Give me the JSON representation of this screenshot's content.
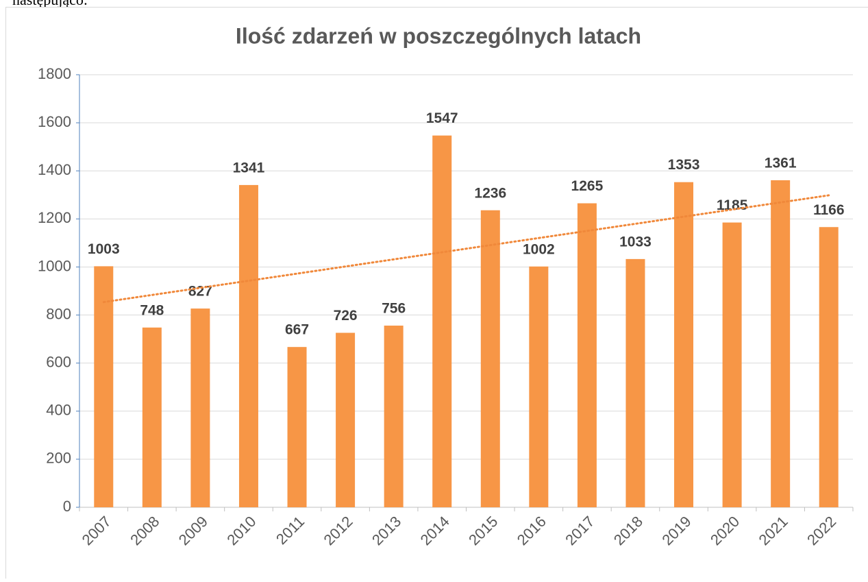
{
  "page_text": "następująco:",
  "chart_data": {
    "type": "bar",
    "title": "Ilość zdarzeń w poszczególnych latach",
    "categories": [
      "2007",
      "2008",
      "2009",
      "2010",
      "2011",
      "2012",
      "2013",
      "2014",
      "2015",
      "2016",
      "2017",
      "2018",
      "2019",
      "2020",
      "2021",
      "2022"
    ],
    "values": [
      1003,
      748,
      827,
      1341,
      667,
      726,
      756,
      1547,
      1236,
      1002,
      1265,
      1033,
      1353,
      1185,
      1361,
      1166
    ],
    "color": "#f79646",
    "trendline": "linear",
    "trendline_color": "#f0883a",
    "ylim": [
      0,
      1800
    ],
    "yticks": [
      0,
      200,
      400,
      600,
      800,
      1000,
      1200,
      1400,
      1600,
      1800
    ],
    "grid": true
  }
}
